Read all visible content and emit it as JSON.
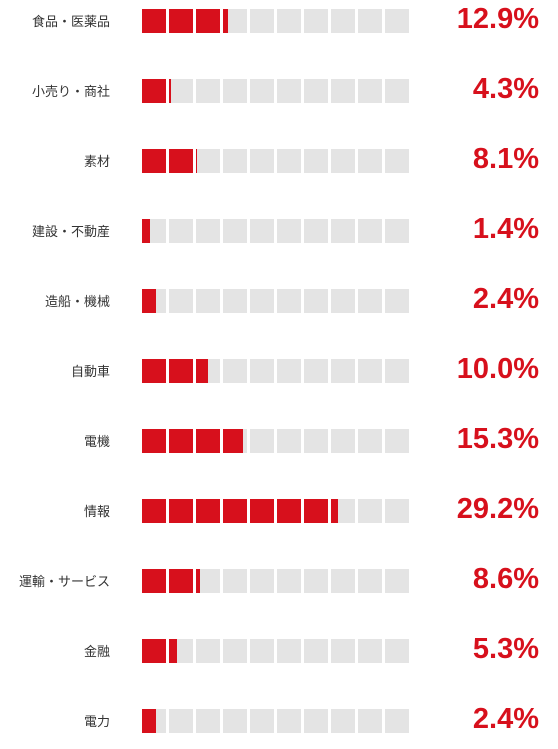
{
  "colors": {
    "accent": "#d7101c",
    "empty_cell": "#e4e4e4",
    "label_text": "#333333"
  },
  "chart_data": {
    "type": "bar",
    "style": "segmented cell bar, 10 cells per row, filled in red by value",
    "categories": [
      "食品・医薬品",
      "小売り・商社",
      "素材",
      "建設・不動産",
      "造船・機械",
      "自動車",
      "電機",
      "情報",
      "運輸・サービス",
      "金融",
      "電力"
    ],
    "values": [
      12.9,
      4.3,
      8.1,
      1.4,
      2.4,
      10.0,
      15.3,
      29.2,
      8.6,
      5.3,
      2.4
    ],
    "value_labels": [
      "12.9%",
      "4.3%",
      "8.1%",
      "1.4%",
      "2.4%",
      "10.0%",
      "15.3%",
      "29.2%",
      "8.6%",
      "5.3%",
      "2.4%"
    ],
    "cell_count": 10,
    "unit": "%"
  }
}
